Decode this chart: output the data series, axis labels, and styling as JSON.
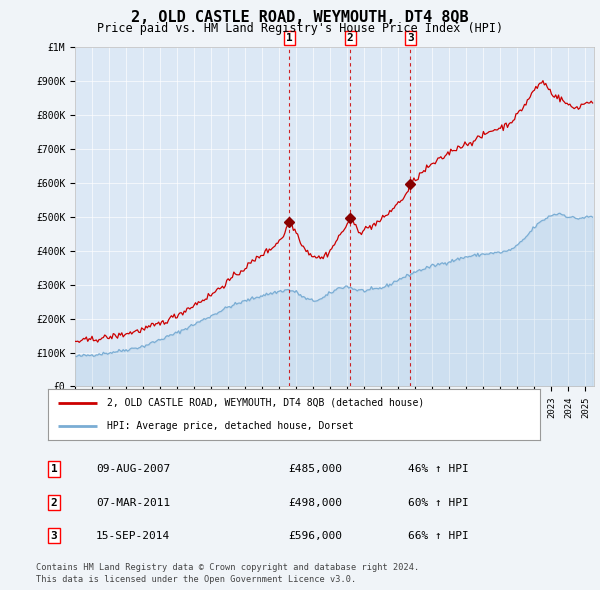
{
  "title": "2, OLD CASTLE ROAD, WEYMOUTH, DT4 8QB",
  "subtitle": "Price paid vs. HM Land Registry's House Price Index (HPI)",
  "title_fontsize": 11,
  "subtitle_fontsize": 8.5,
  "background_color": "#f0f4f8",
  "plot_bg_color": "#dce8f5",
  "legend_label_red": "2, OLD CASTLE ROAD, WEYMOUTH, DT4 8QB (detached house)",
  "legend_label_blue": "HPI: Average price, detached house, Dorset",
  "footnote1": "Contains HM Land Registry data © Crown copyright and database right 2024.",
  "footnote2": "This data is licensed under the Open Government Licence v3.0.",
  "sales": [
    {
      "num": 1,
      "date_x": 2007.6,
      "price": 485000,
      "label": "09-AUG-2007",
      "pct": "46%"
    },
    {
      "num": 2,
      "date_x": 2011.17,
      "price": 498000,
      "label": "07-MAR-2011",
      "pct": "60%"
    },
    {
      "num": 3,
      "date_x": 2014.7,
      "price": 596000,
      "label": "15-SEP-2014",
      "pct": "66%"
    }
  ],
  "red_color": "#cc0000",
  "blue_color": "#7aadd4",
  "marker_color": "#880000",
  "dashed_color": "#cc0000",
  "ylim": [
    0,
    1000000
  ],
  "yticks": [
    0,
    100000,
    200000,
    300000,
    400000,
    500000,
    600000,
    700000,
    800000,
    900000,
    1000000
  ],
  "ytick_labels": [
    "£0",
    "£100K",
    "£200K",
    "£300K",
    "£400K",
    "£500K",
    "£600K",
    "£700K",
    "£800K",
    "£900K",
    "£1M"
  ],
  "xlim_start": 1995.0,
  "xlim_end": 2025.5
}
